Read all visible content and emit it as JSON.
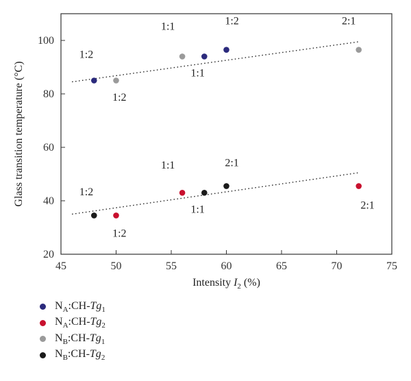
{
  "chart_data": {
    "type": "scatter",
    "xlabel_main": "Intensity ",
    "xlabel_var": "I",
    "xlabel_sub": "2",
    "xlabel_unit": " (%)",
    "ylabel": "Glass transition temperature (°C)",
    "xlim": [
      45,
      75
    ],
    "ylim": [
      20,
      110
    ],
    "xticks": [
      45,
      50,
      55,
      60,
      65,
      70,
      75
    ],
    "yticks": [
      20,
      40,
      60,
      80,
      100
    ],
    "series": [
      {
        "key": "nA_tg1",
        "color": "#2b2a7c",
        "legend": {
          "pre": "N",
          "pre_sub": "A",
          "mid": ":CH-",
          "var": "Tg",
          "var_sub": "1"
        },
        "points": [
          {
            "x": 48,
            "y": 85
          },
          {
            "x": 58,
            "y": 94
          },
          {
            "x": 60,
            "y": 96.5
          }
        ]
      },
      {
        "key": "nA_tg2",
        "color": "#c8102e",
        "legend": {
          "pre": "N",
          "pre_sub": "A",
          "mid": ":CH-",
          "var": "Tg",
          "var_sub": "2"
        },
        "points": [
          {
            "x": 50,
            "y": 34.5
          },
          {
            "x": 56,
            "y": 43
          },
          {
            "x": 72,
            "y": 45.5
          }
        ]
      },
      {
        "key": "nB_tg1",
        "color": "#9a9a9a",
        "legend": {
          "pre": "N",
          "pre_sub": "B",
          "mid": ":CH-",
          "var": "Tg",
          "var_sub": "1"
        },
        "points": [
          {
            "x": 50,
            "y": 85
          },
          {
            "x": 56,
            "y": 94
          },
          {
            "x": 72,
            "y": 96.5
          }
        ]
      },
      {
        "key": "nB_tg2",
        "color": "#1a1a1a",
        "legend": {
          "pre": "N",
          "pre_sub": "B",
          "mid": ":CH-",
          "var": "Tg",
          "var_sub": "2"
        },
        "points": [
          {
            "x": 48,
            "y": 34.5
          },
          {
            "x": 58,
            "y": 43
          },
          {
            "x": 60,
            "y": 45.5
          }
        ]
      }
    ],
    "trendlines": [
      {
        "x": [
          46,
          72
        ],
        "y": [
          84.5,
          99.5
        ]
      },
      {
        "x": [
          46,
          72
        ],
        "y": [
          35,
          50.5
        ]
      }
    ],
    "annotations": [
      {
        "text": "1:2",
        "x": 47.3,
        "y": 93.5
      },
      {
        "text": "1:2",
        "x": 50.3,
        "y": 77.5
      },
      {
        "text": "1:1",
        "x": 54.7,
        "y": 104
      },
      {
        "text": "1:1",
        "x": 57.4,
        "y": 86.5
      },
      {
        "text": "1:2",
        "x": 60.5,
        "y": 106
      },
      {
        "text": "2:1",
        "x": 71.1,
        "y": 106
      },
      {
        "text": "1:2",
        "x": 47.3,
        "y": 42
      },
      {
        "text": "1:2",
        "x": 50.3,
        "y": 26.5
      },
      {
        "text": "1:1",
        "x": 54.7,
        "y": 52
      },
      {
        "text": "1:1",
        "x": 57.4,
        "y": 35.5
      },
      {
        "text": "2:1",
        "x": 60.5,
        "y": 53
      },
      {
        "text": "2:1",
        "x": 72.8,
        "y": 37
      }
    ]
  }
}
